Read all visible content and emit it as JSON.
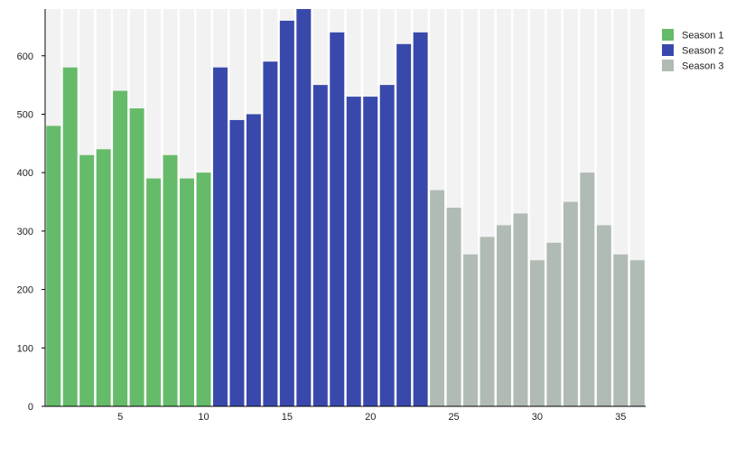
{
  "chart_data": {
    "type": "bar",
    "title": "",
    "xlabel": "",
    "ylabel": "",
    "ylim": [
      0,
      680
    ],
    "xlim": [
      0.5,
      36.5
    ],
    "yticks": [
      0,
      100,
      200,
      300,
      400,
      500,
      600
    ],
    "xticks": [
      5,
      10,
      15,
      20,
      25,
      30,
      35
    ],
    "grid": false,
    "background_bars": true,
    "legend_position": "right",
    "series": [
      {
        "name": "Season 1",
        "color": "#66bb6a",
        "x": [
          1,
          2,
          3,
          4,
          5,
          6,
          7,
          8,
          9,
          10
        ],
        "values": [
          480,
          580,
          430,
          440,
          540,
          510,
          390,
          430,
          390,
          400
        ]
      },
      {
        "name": "Season 2",
        "color": "#3949ab",
        "x": [
          11,
          12,
          13,
          14,
          15,
          16,
          17,
          18,
          19,
          20,
          21,
          22,
          23
        ],
        "values": [
          580,
          490,
          500,
          590,
          660,
          680,
          550,
          640,
          530,
          530,
          550,
          620,
          640
        ]
      },
      {
        "name": "Season 3",
        "color": "#b0bbb3",
        "x": [
          24,
          25,
          26,
          27,
          28,
          29,
          30,
          31,
          32,
          33,
          34,
          35,
          36
        ],
        "values": [
          370,
          340,
          260,
          290,
          310,
          330,
          250,
          280,
          350,
          400,
          310,
          260,
          250
        ]
      }
    ],
    "background_color": "#f2f2f2"
  }
}
